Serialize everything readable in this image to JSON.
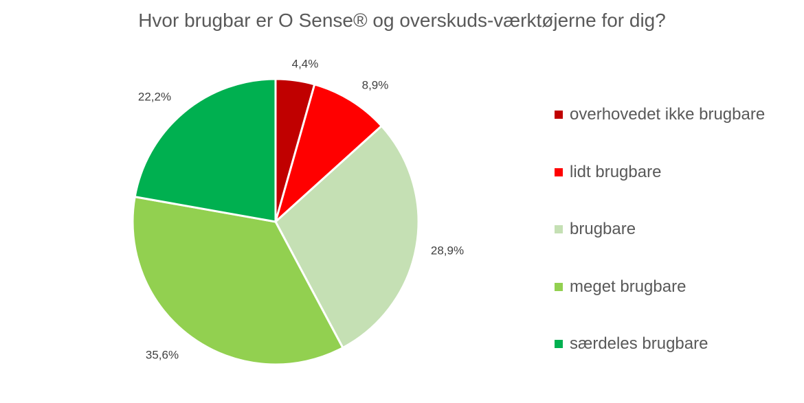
{
  "chart_data": {
    "type": "pie",
    "title": "Hvor brugbar er O Sense® og overskuds-værktøjerne for dig?",
    "categories": [
      "overhovedet ikke brugbare",
      "lidt brugbare",
      "brugbare",
      "meget brugbare",
      "særdeles brugbare"
    ],
    "values": [
      4.4,
      8.9,
      28.9,
      35.6,
      22.2
    ],
    "data_labels": [
      "4,4%",
      "8,9%",
      "28,9%",
      "35,6%",
      "22,2%"
    ],
    "colors": [
      "#C00000",
      "#FF0000",
      "#C5E0B4",
      "#92D050",
      "#00B050"
    ],
    "legend_position": "right"
  }
}
